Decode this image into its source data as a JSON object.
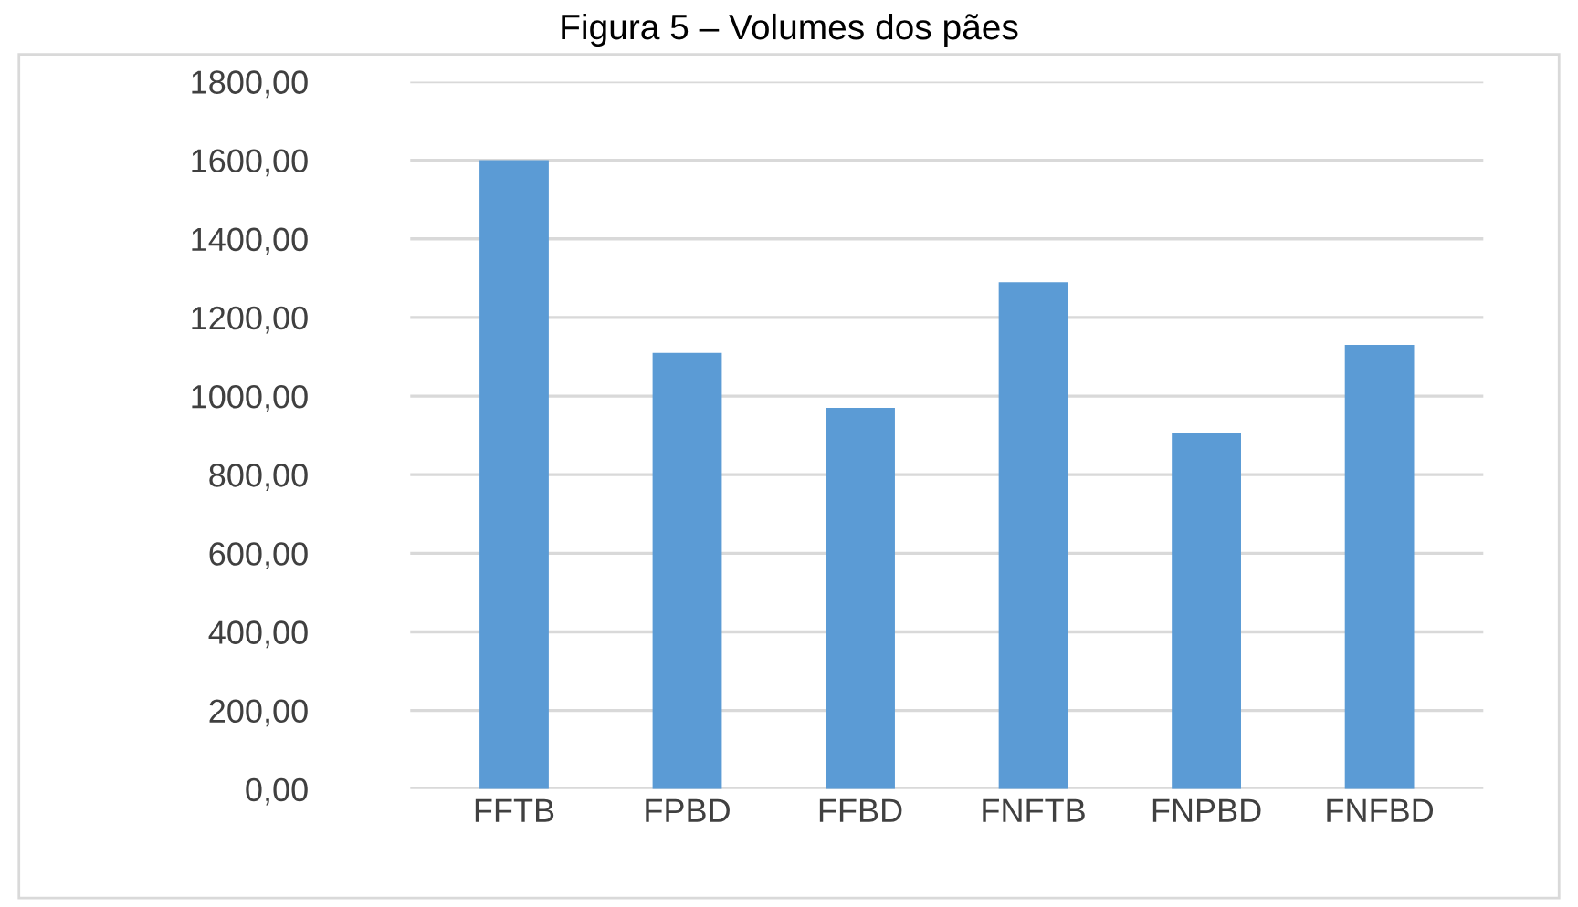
{
  "chart_data": {
    "type": "bar",
    "title": "Figura 5 – Volumes dos pães",
    "categories": [
      "FFTB",
      "FPBD",
      "FFBD",
      "FNFTB",
      "FNPBD",
      "FNFBD"
    ],
    "values": [
      1600,
      1110,
      970,
      1290,
      905,
      1130
    ],
    "color": "#5b9bd5",
    "ylim": [
      0,
      1800
    ],
    "yticks": [
      {
        "value": 0,
        "label": "0,00"
      },
      {
        "value": 200,
        "label": "200,00"
      },
      {
        "value": 400,
        "label": "400,00"
      },
      {
        "value": 600,
        "label": "600,00"
      },
      {
        "value": 800,
        "label": "800,00"
      },
      {
        "value": 1000,
        "label": "1000,00"
      },
      {
        "value": 1200,
        "label": "1200,00"
      },
      {
        "value": 1400,
        "label": "1400,00"
      },
      {
        "value": 1600,
        "label": "1600,00"
      },
      {
        "value": 1800,
        "label": "1800,00"
      }
    ],
    "grid": "y"
  }
}
